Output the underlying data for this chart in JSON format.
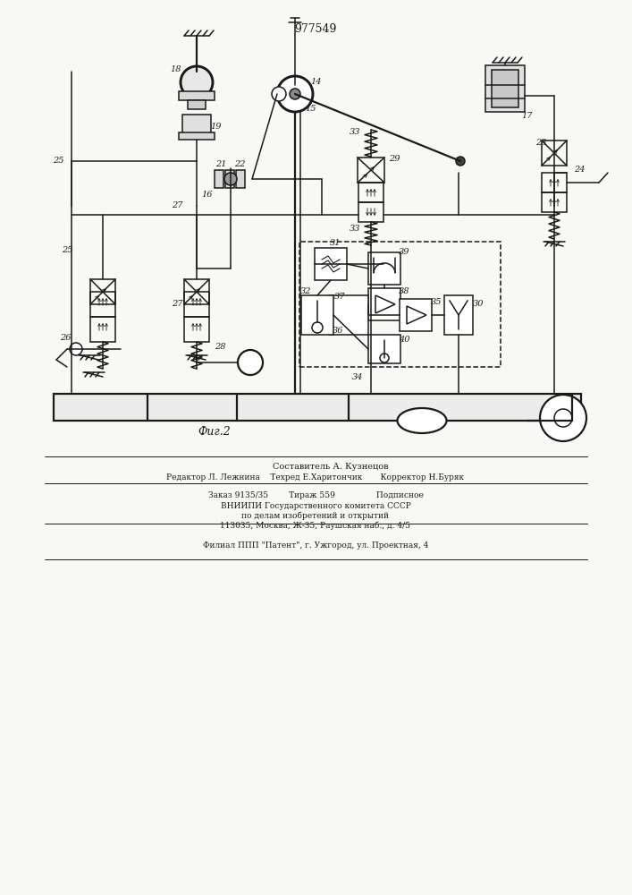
{
  "title": "977549",
  "fig_label": "Фиг.2",
  "bg": "#f8f8f5",
  "lc": "#1a1a1a",
  "footer": {
    "line1_center": "Составитель А. Кузнецов",
    "line2": "Редактор Л. Лежнина    Техред Е.Харитончик       Корректор Н.Буряк",
    "line3": "Заказ 9135/35        Тираж 559                Подписное",
    "line4": "ВНИИПИ Государственного комитета СССР",
    "line5": "по делам изобретений и открытий",
    "line6": "113035, Москва, Ж-35, Раушская наб., д. 4/5",
    "line7": "Филиал ППП \"Патент\", г. Ужгород, ул. Проектная, 4"
  }
}
